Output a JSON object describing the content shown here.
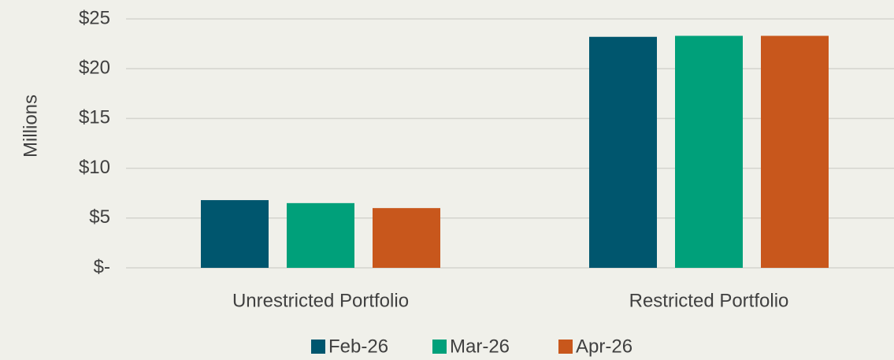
{
  "chart_data": {
    "type": "bar",
    "y_label": "Millions",
    "categories": [
      "Unrestricted Portfolio",
      "Restricted Portfolio"
    ],
    "series": [
      {
        "name": "Feb-26",
        "color": "#00566e",
        "values": [
          6.8,
          23.2
        ]
      },
      {
        "name": "Mar-26",
        "color": "#00a07a",
        "values": [
          6.5,
          23.3
        ]
      },
      {
        "name": "Apr-26",
        "color": "#c8571c",
        "values": [
          6.0,
          23.3
        ]
      }
    ],
    "ylim": [
      0,
      25
    ],
    "yticks": [
      {
        "value": 0,
        "label": "$-"
      },
      {
        "value": 5,
        "label": "$5"
      },
      {
        "value": 10,
        "label": "$10"
      },
      {
        "value": 15,
        "label": "$15"
      },
      {
        "value": 20,
        "label": "$20"
      },
      {
        "value": 25,
        "label": "$25"
      }
    ],
    "grid": true,
    "legend": "bottom"
  }
}
